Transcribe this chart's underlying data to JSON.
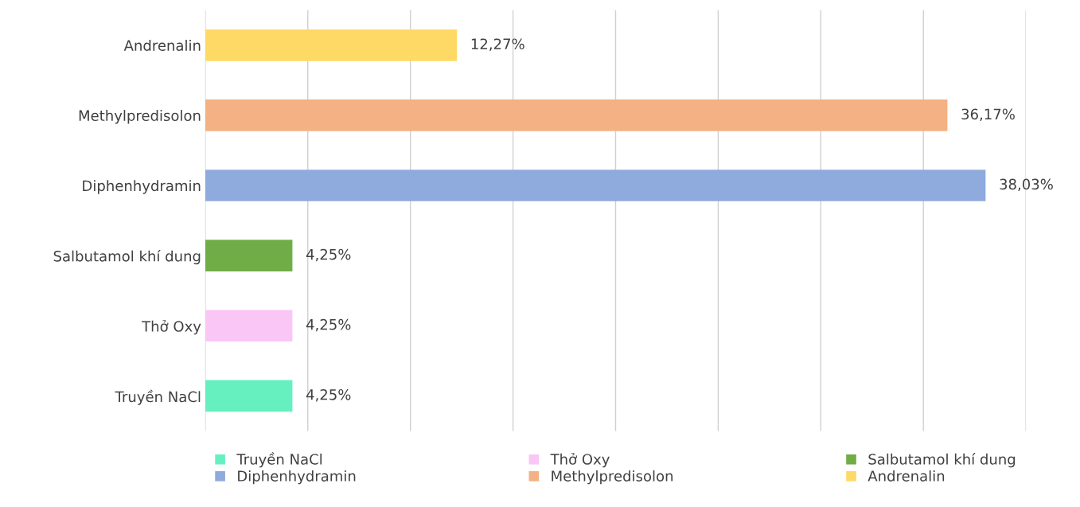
{
  "chart_data": {
    "type": "bar",
    "orientation": "horizontal",
    "categories": [
      "Andrenalin",
      "Methylpredisolon",
      "Diphenhydramin",
      "Salbutamol khí dung",
      "Thở Oxy",
      "Truyền NaCl"
    ],
    "series": [
      {
        "name": "Truyền NaCl",
        "color": "#66f0c0",
        "values": [
          null,
          null,
          null,
          null,
          null,
          4.25
        ],
        "value_labels": [
          null,
          null,
          null,
          null,
          null,
          "4,25%"
        ]
      },
      {
        "name": "Thở Oxy",
        "color": "#f9c6f5",
        "values": [
          null,
          null,
          null,
          null,
          4.25,
          null
        ],
        "value_labels": [
          null,
          null,
          null,
          null,
          "4,25%",
          null
        ]
      },
      {
        "name": "Salbutamol khí dung",
        "color": "#70ad47",
        "values": [
          null,
          null,
          null,
          4.25,
          null,
          null
        ],
        "value_labels": [
          null,
          null,
          null,
          "4,25%",
          null,
          null
        ]
      },
      {
        "name": "Diphenhydramin",
        "color": "#8faadc",
        "values": [
          null,
          null,
          38.03,
          null,
          null,
          null
        ],
        "value_labels": [
          null,
          null,
          "38,03%",
          null,
          null,
          null
        ]
      },
      {
        "name": "Methylpredisolon",
        "color": "#f4b183",
        "values": [
          null,
          36.17,
          null,
          null,
          null,
          null
        ],
        "value_labels": [
          null,
          "36,17%",
          null,
          null,
          null,
          null
        ]
      },
      {
        "name": "Andrenalin",
        "color": "#ffd966",
        "values": [
          12.27,
          null,
          null,
          null,
          null,
          null
        ],
        "value_labels": [
          "12,27%",
          null,
          null,
          null,
          null,
          null
        ]
      }
    ],
    "xlim": [
      0,
      40
    ],
    "xticks": [
      {
        "value": 0,
        "label": null
      },
      {
        "value": 5,
        "label": null
      },
      {
        "value": 10,
        "label": null
      },
      {
        "value": 15,
        "label": null
      },
      {
        "value": 20,
        "label": null
      },
      {
        "value": 25,
        "label": null
      },
      {
        "value": 30,
        "label": null
      },
      {
        "value": 35,
        "label": null
      },
      {
        "value": 40,
        "label": null
      }
    ],
    "tick_labels": "y",
    "grid": "x",
    "legend": "bottom"
  }
}
